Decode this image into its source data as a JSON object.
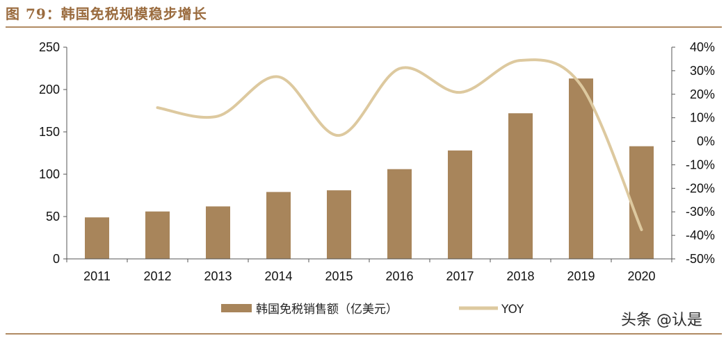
{
  "header": {
    "figure_title": "图 79：韩国免税规模稳步增长"
  },
  "watermark": "头条 @认是",
  "colors": {
    "bar": "#a8855b",
    "line": "#ddc99f",
    "title": "#9a6b3e",
    "rule": "#b08a62",
    "axis": "#555555"
  },
  "chart_data": {
    "type": "bar+line",
    "categories": [
      "2011",
      "2012",
      "2013",
      "2014",
      "2015",
      "2016",
      "2017",
      "2018",
      "2019",
      "2020"
    ],
    "series": [
      {
        "name": "韩国免税销售额（亿美元）",
        "type": "bar",
        "axis": "left",
        "values": [
          49,
          56,
          62,
          79,
          81,
          106,
          128,
          172,
          213,
          133
        ]
      },
      {
        "name": "YOY",
        "type": "line",
        "axis": "right",
        "values": [
          null,
          14.3,
          10.7,
          27.4,
          2.5,
          30.9,
          20.8,
          34.4,
          23.8,
          -37.6
        ]
      }
    ],
    "y_left": {
      "lim": [
        0,
        250
      ],
      "ticks": [
        "0",
        "50",
        "100",
        "150",
        "200",
        "250"
      ]
    },
    "y_right": {
      "lim": [
        -50,
        40
      ],
      "ticks": [
        "-50%",
        "-40%",
        "-30%",
        "-20%",
        "-10%",
        "0%",
        "10%",
        "20%",
        "30%",
        "40%"
      ]
    },
    "legend_position": "bottom",
    "grid": false
  }
}
